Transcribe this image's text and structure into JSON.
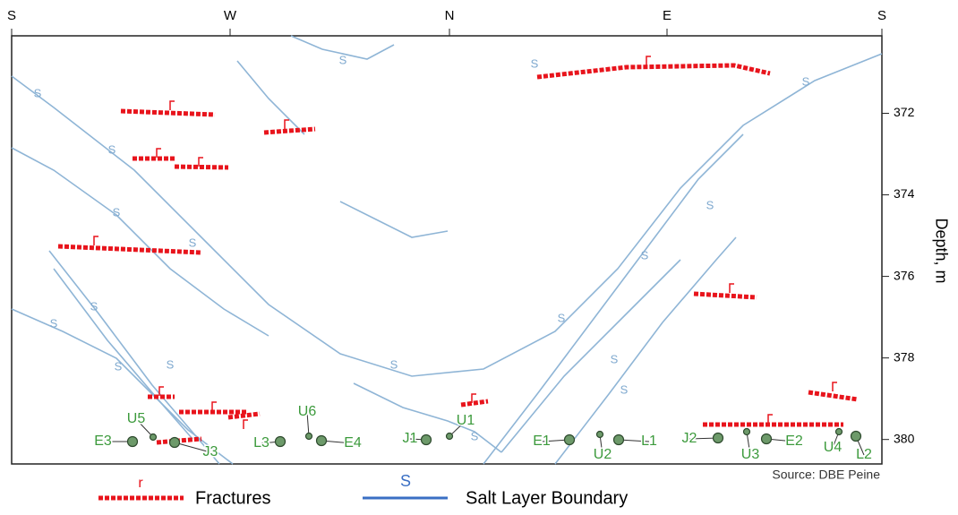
{
  "compass": [
    "S",
    "W",
    "N",
    "E",
    "S"
  ],
  "depth_axis": {
    "label": "Depth, m",
    "ticks": [
      372,
      374,
      376,
      378,
      380
    ],
    "ylim": [
      370.1,
      380.6
    ]
  },
  "boundary_labels": [
    "S",
    "S",
    "S",
    "S",
    "S",
    "S",
    "S",
    "S",
    "S",
    "S",
    "S",
    "S",
    "S",
    "S",
    "S",
    "S",
    "S",
    "S"
  ],
  "points": [
    "E3",
    "U5",
    "J3",
    "L3",
    "U6",
    "E4",
    "J1",
    "U1",
    "E1",
    "U2",
    "L1",
    "J2",
    "U3",
    "E2",
    "U4",
    "L2"
  ],
  "source": "Source: DBE Peine",
  "legend": {
    "fracture_symbol": "r",
    "fractures": "Fractures",
    "boundary_symbol": "S",
    "boundary": "Salt Layer Boundary"
  }
}
